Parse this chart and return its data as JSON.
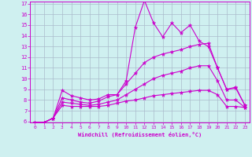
{
  "xlabel": "Windchill (Refroidissement éolien,°C)",
  "bg_color": "#cff0f0",
  "line_color": "#cc00cc",
  "grid_color": "#aabbcc",
  "x": [
    0,
    1,
    2,
    3,
    4,
    5,
    6,
    7,
    8,
    9,
    10,
    11,
    12,
    13,
    14,
    15,
    16,
    17,
    18,
    19,
    20,
    21,
    22,
    23
  ],
  "line1": [
    5.9,
    5.9,
    6.3,
    8.9,
    8.4,
    8.2,
    8.0,
    8.1,
    8.5,
    8.5,
    9.8,
    14.8,
    17.3,
    15.2,
    13.9,
    15.2,
    14.3,
    15.0,
    13.5,
    13.0,
    11.0,
    9.0,
    9.1,
    7.5
  ],
  "line2": [
    5.9,
    5.9,
    6.3,
    8.2,
    8.0,
    7.8,
    7.7,
    7.9,
    8.3,
    8.5,
    9.5,
    10.5,
    11.5,
    12.0,
    12.3,
    12.5,
    12.7,
    13.0,
    13.2,
    13.3,
    11.0,
    9.0,
    9.2,
    7.5
  ],
  "line3": [
    5.9,
    5.9,
    6.3,
    7.8,
    7.7,
    7.6,
    7.5,
    7.6,
    7.8,
    8.0,
    8.5,
    9.0,
    9.5,
    10.0,
    10.3,
    10.5,
    10.7,
    11.0,
    11.2,
    11.2,
    9.8,
    8.0,
    8.0,
    7.3
  ],
  "line4": [
    5.9,
    5.9,
    6.3,
    7.5,
    7.4,
    7.4,
    7.4,
    7.4,
    7.5,
    7.7,
    7.9,
    8.0,
    8.2,
    8.4,
    8.5,
    8.6,
    8.7,
    8.8,
    8.9,
    8.9,
    8.5,
    7.4,
    7.4,
    7.3
  ],
  "ylim": [
    6,
    17
  ],
  "xlim": [
    -0.5,
    23.5
  ],
  "yticks": [
    6,
    7,
    8,
    9,
    10,
    11,
    12,
    13,
    14,
    15,
    16,
    17
  ],
  "xticks": [
    0,
    1,
    2,
    3,
    4,
    5,
    6,
    7,
    8,
    9,
    10,
    11,
    12,
    13,
    14,
    15,
    16,
    17,
    18,
    19,
    20,
    21,
    22,
    23
  ]
}
